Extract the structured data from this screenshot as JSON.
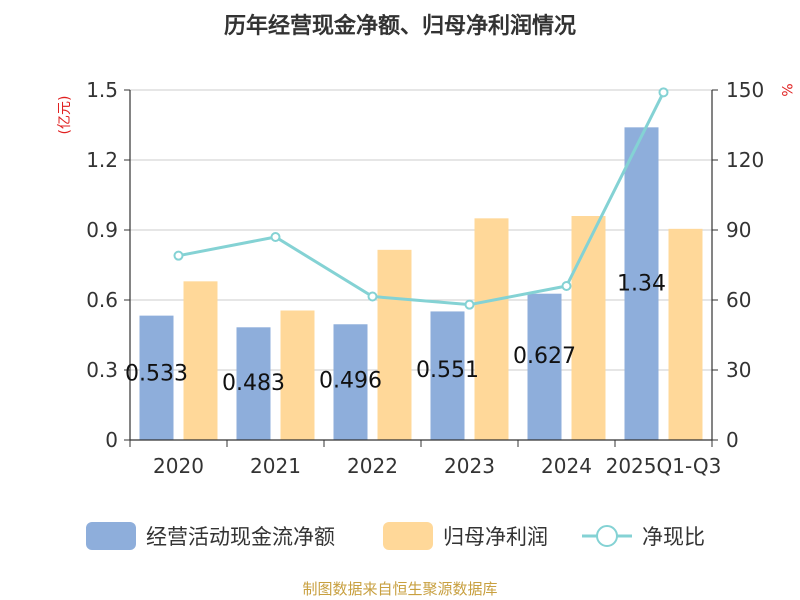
{
  "chart_data": {
    "type": "bar",
    "title": "历年经营现金净额、归母净利润情况",
    "categories": [
      "2020",
      "2021",
      "2022",
      "2023",
      "2024",
      "2025Q1-Q3"
    ],
    "y_left": {
      "unit": "(亿元)",
      "range": [
        0,
        1.5
      ],
      "ticks": [
        "0",
        "0.3",
        "0.6",
        "0.9",
        "1.2",
        "1.5"
      ]
    },
    "y_right": {
      "unit": "%",
      "range": [
        0,
        150
      ],
      "ticks": [
        "0",
        "30",
        "60",
        "90",
        "120",
        "150"
      ]
    },
    "series": [
      {
        "name": "经营活动现金流净额",
        "kind": "bar",
        "axis": "left",
        "color": "#8eaedb",
        "values": [
          0.533,
          0.483,
          0.496,
          0.551,
          0.627,
          1.34
        ],
        "labels": [
          "0.533",
          "0.483",
          "0.496",
          "0.551",
          "0.627",
          "1.34"
        ]
      },
      {
        "name": "归母净利润",
        "kind": "bar",
        "axis": "left",
        "color": "#ffd899",
        "values": [
          0.68,
          0.555,
          0.815,
          0.95,
          0.96,
          0.905
        ]
      },
      {
        "name": "净现比",
        "kind": "line",
        "axis": "right",
        "color": "#84d2d4",
        "values": [
          79,
          87,
          61.5,
          58,
          66,
          149
        ]
      }
    ],
    "grid": true,
    "legend": "bottom"
  },
  "footer": {
    "source": "制图数据来自恒生聚源数据库"
  }
}
